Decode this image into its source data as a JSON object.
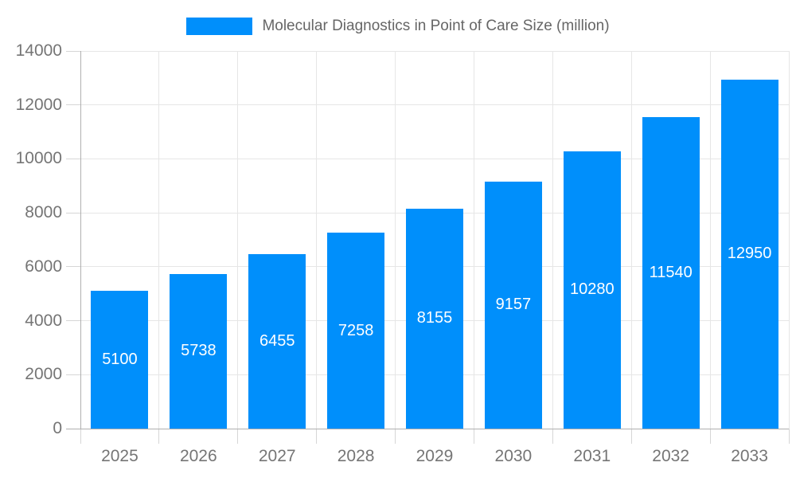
{
  "chart_data": {
    "type": "bar",
    "title": "Molecular Diagnostics in Point of Care Size (million)",
    "legend_entries": [
      "Molecular Diagnostics in Point of Care Size (million)"
    ],
    "legend_position": "top-center",
    "categories": [
      "2025",
      "2026",
      "2027",
      "2028",
      "2029",
      "2030",
      "2031",
      "2032",
      "2033"
    ],
    "series": [
      {
        "name": "Molecular Diagnostics in Point of Care Size (million)",
        "values": [
          5100,
          5738,
          6455,
          7258,
          8155,
          9157,
          10280,
          11540,
          12950
        ]
      }
    ],
    "value_labels": [
      "5100",
      "5738",
      "6455",
      "7258",
      "8155",
      "9157",
      "10280",
      "11540",
      "12950"
    ],
    "xlabel": "",
    "ylabel": "",
    "ylim": [
      0,
      14000
    ],
    "yticks": [
      0,
      2000,
      4000,
      6000,
      8000,
      10000,
      12000,
      14000
    ],
    "ytick_labels": [
      "0",
      "2000",
      "4000",
      "6000",
      "8000",
      "10000",
      "12000",
      "14000"
    ],
    "grid": true
  },
  "colors": {
    "bar_fill": "#008FFB",
    "bar_value_text": "#ffffff",
    "gridline": "#e6e6e6",
    "tick": "#d6d6d6",
    "axis_line": "#b0b0b0",
    "axis_label_text": "#757575",
    "legend_text": "#666666",
    "background": "#ffffff"
  }
}
